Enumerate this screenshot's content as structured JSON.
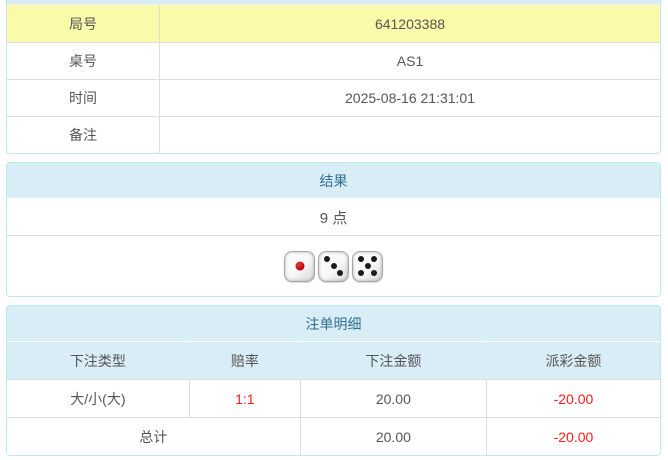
{
  "colors": {
    "header_bg": "#d9edf7",
    "header_text": "#31708f",
    "panel_border": "#bce8f1",
    "divider": "#dddddd",
    "text": "#555555",
    "highlight_bg": "#fafaaa",
    "negative": "#ff1a1a",
    "pip_black": "#1a1a1a",
    "pip_red": "#bb0000"
  },
  "round_info": {
    "rows": [
      {
        "label": "局号",
        "value": "641203388"
      },
      {
        "label": "桌号",
        "value": "AS1"
      },
      {
        "label": "时间",
        "value": "2025-08-16 21:31:01"
      },
      {
        "label": "备注",
        "value": ""
      }
    ]
  },
  "result": {
    "title": "结果",
    "points": "9 点",
    "dice": [
      1,
      3,
      5
    ]
  },
  "bet_details": {
    "title": "注单明细",
    "columns": [
      "下注类型",
      "赔率",
      "下注金额",
      "派彩金额"
    ],
    "rows": [
      {
        "type": "大/小(大)",
        "odds": "1:1",
        "bet": "20.00",
        "payout": "-20.00"
      }
    ],
    "total": {
      "label": "总计",
      "bet": "20.00",
      "payout": "-20.00"
    }
  }
}
